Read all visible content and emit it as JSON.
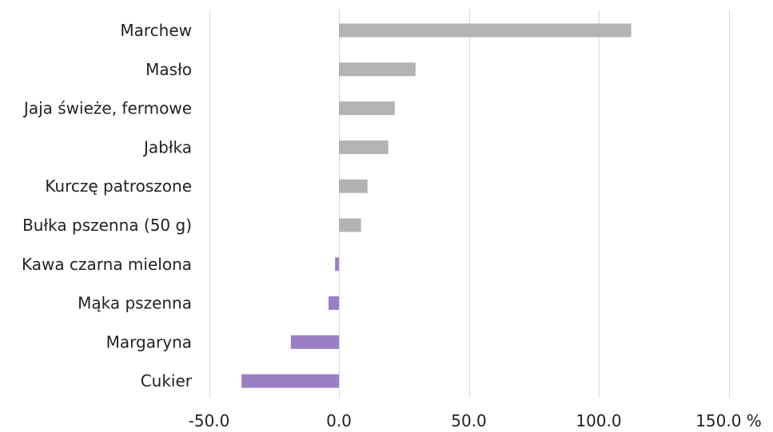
{
  "chart_data": {
    "type": "bar",
    "orientation": "horizontal",
    "categories": [
      "Marchew",
      "Masło",
      "Jaja świeże, fermowe",
      "Jabłka",
      "Kurczę patroszone",
      "Bułka pszenna (50 g)",
      "Kawa czarna mielona",
      "Mąka pszenna",
      "Margaryna",
      "Cukier"
    ],
    "values": [
      112.5,
      29.5,
      21.5,
      19.0,
      11.0,
      8.5,
      -1.5,
      -4.0,
      -18.5,
      -37.5
    ],
    "xlim": [
      -50,
      150
    ],
    "x_ticks": [
      -50,
      0,
      50,
      100,
      150
    ],
    "x_tick_labels": [
      "-50.0",
      "0.0",
      "50.0",
      "100.0",
      "150.0 %"
    ],
    "grid": "vertical",
    "colors": {
      "positive": "#b3b3b3",
      "negative": "#9b7fc6",
      "grid": "#d9d9d9"
    }
  }
}
